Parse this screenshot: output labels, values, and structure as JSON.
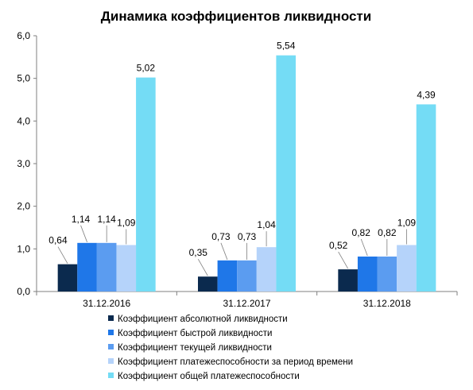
{
  "chart_data": {
    "type": "bar",
    "title": "Динамика коэффициентов ликвидности",
    "categories": [
      "31.12.2016",
      "31.12.2017",
      "31.12.2018"
    ],
    "ylim": [
      0,
      6
    ],
    "yticks": [
      "0,0",
      "1,0",
      "2,0",
      "3,0",
      "4,0",
      "5,0",
      "6,0"
    ],
    "grid": false,
    "legend_position": "bottom",
    "series": [
      {
        "name": "Коэффициент абсолютной ликвидности",
        "values": [
          0.64,
          0.35,
          0.52
        ],
        "labels": [
          "0,64",
          "0,35",
          "0,52"
        ],
        "color": "#0b2a4e"
      },
      {
        "name": "Коэффициент быстрой ликвидности",
        "values": [
          1.14,
          0.73,
          0.82
        ],
        "labels": [
          "1,14",
          "0,73",
          "0,82"
        ],
        "color": "#1f77e8"
      },
      {
        "name": "Коэффициент текущей ликвидности",
        "values": [
          1.14,
          0.73,
          0.82
        ],
        "labels": [
          "1,14",
          "0,73",
          "0,82"
        ],
        "color": "#5b9cf0"
      },
      {
        "name": "Коэффициент платежеспособности за период времени",
        "values": [
          1.09,
          1.04,
          1.09
        ],
        "labels": [
          "1,09",
          "1,04",
          "1,09"
        ],
        "color": "#b5d3fa"
      },
      {
        "name": "Коэффициент общей платежеспособности",
        "values": [
          5.02,
          5.54,
          4.39
        ],
        "labels": [
          "5,02",
          "5,54",
          "4,39"
        ],
        "color": "#74dcf5"
      }
    ]
  }
}
